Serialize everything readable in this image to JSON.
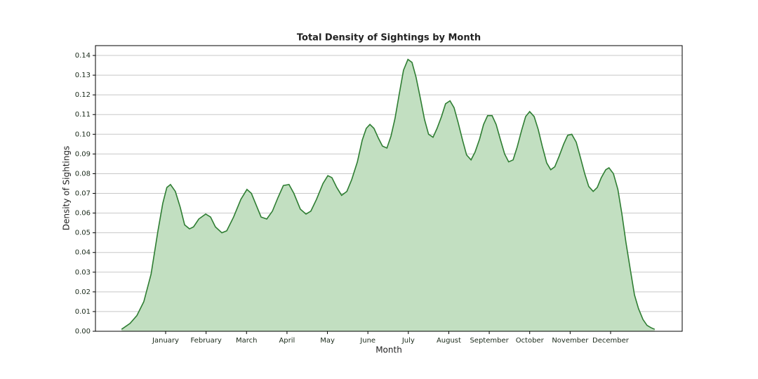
{
  "chart_data": {
    "type": "area",
    "title": "Total Density of Sightings by Month",
    "x_label": "Month",
    "y_label": "Density of Sightings",
    "color": "#2e7d32",
    "fill_color": "#c2dfc1",
    "grid": true,
    "xlim": [
      -0.735,
      13.77
    ],
    "ylim": [
      0,
      0.145
    ],
    "xticks": [
      {
        "value": 1,
        "label": "January"
      },
      {
        "value": 2,
        "label": "February"
      },
      {
        "value": 3,
        "label": "March"
      },
      {
        "value": 4,
        "label": "April"
      },
      {
        "value": 5,
        "label": "May"
      },
      {
        "value": 6,
        "label": "June"
      },
      {
        "value": 7,
        "label": "July"
      },
      {
        "value": 8,
        "label": "August"
      },
      {
        "value": 9,
        "label": "September"
      },
      {
        "value": 10,
        "label": "October"
      },
      {
        "value": 11,
        "label": "November"
      },
      {
        "value": 12,
        "label": "December"
      }
    ],
    "yticks": [
      {
        "value": 0,
        "label": "0.00"
      },
      0.01,
      0.02,
      0.03,
      0.04,
      0.05,
      0.06,
      0.07,
      0.08,
      0.09,
      {
        "value": 0.1,
        "label": "0.10"
      },
      0.11,
      0.12,
      0.13,
      0.14
    ],
    "x": [
      -0.09,
      0.12,
      0.29,
      0.46,
      0.64,
      0.81,
      0.93,
      1.03,
      1.12,
      1.24,
      1.36,
      1.47,
      1.59,
      1.69,
      1.82,
      1.99,
      2.11,
      2.23,
      2.39,
      2.51,
      2.68,
      2.86,
      3.01,
      3.12,
      3.22,
      3.36,
      3.5,
      3.64,
      3.78,
      3.91,
      4.05,
      4.17,
      4.33,
      4.47,
      4.59,
      4.73,
      4.89,
      5.01,
      5.11,
      5.23,
      5.35,
      5.48,
      5.6,
      5.74,
      5.86,
      5.96,
      6.05,
      6.15,
      6.26,
      6.36,
      6.47,
      6.57,
      6.67,
      6.78,
      6.88,
      6.99,
      7.09,
      7.19,
      7.3,
      7.4,
      7.5,
      7.61,
      7.71,
      7.82,
      7.92,
      8.03,
      8.13,
      8.23,
      8.34,
      8.44,
      8.55,
      8.65,
      8.76,
      8.86,
      8.96,
      9.07,
      9.17,
      9.28,
      9.38,
      9.48,
      9.59,
      9.69,
      9.8,
      9.9,
      10.0,
      10.11,
      10.21,
      10.31,
      10.42,
      10.52,
      10.62,
      10.73,
      10.84,
      10.94,
      11.04,
      11.15,
      11.25,
      11.36,
      11.46,
      11.57,
      11.67,
      11.77,
      11.88,
      11.96,
      12.07,
      12.18,
      12.28,
      12.38,
      12.49,
      12.59,
      12.69,
      12.8,
      12.9,
      13.0,
      13.09
    ],
    "values": [
      0.001,
      0.004,
      0.008,
      0.015,
      0.029,
      0.051,
      0.065,
      0.073,
      0.0745,
      0.071,
      0.063,
      0.054,
      0.052,
      0.053,
      0.057,
      0.0595,
      0.058,
      0.053,
      0.05,
      0.051,
      0.058,
      0.067,
      0.072,
      0.07,
      0.065,
      0.058,
      0.057,
      0.061,
      0.068,
      0.074,
      0.0745,
      0.07,
      0.062,
      0.0595,
      0.061,
      0.067,
      0.075,
      0.079,
      0.078,
      0.073,
      0.069,
      0.071,
      0.077,
      0.086,
      0.097,
      0.103,
      0.105,
      0.103,
      0.098,
      0.094,
      0.093,
      0.099,
      0.108,
      0.121,
      0.1325,
      0.138,
      0.1365,
      0.129,
      0.118,
      0.1075,
      0.1,
      0.0985,
      0.103,
      0.109,
      0.1155,
      0.117,
      0.1135,
      0.106,
      0.097,
      0.0895,
      0.087,
      0.091,
      0.0975,
      0.105,
      0.1095,
      0.1095,
      0.105,
      0.097,
      0.09,
      0.086,
      0.087,
      0.0935,
      0.102,
      0.109,
      0.1115,
      0.109,
      0.1025,
      0.094,
      0.0855,
      0.082,
      0.0835,
      0.089,
      0.095,
      0.0995,
      0.1,
      0.096,
      0.0885,
      0.08,
      0.0735,
      0.071,
      0.073,
      0.078,
      0.082,
      0.083,
      0.08,
      0.072,
      0.0595,
      0.045,
      0.031,
      0.0185,
      0.0115,
      0.006,
      0.003,
      0.0018,
      0.001
    ]
  }
}
